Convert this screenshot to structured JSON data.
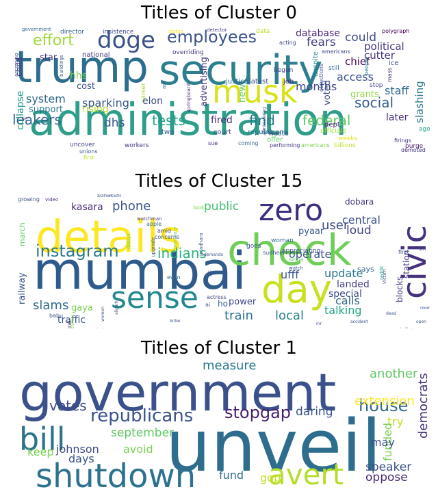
{
  "clouds": [
    {
      "title": "Titles of Cluster 0",
      "words": [
        {
          "text": "administration",
          "size": 64,
          "color": "#2e9d8a"
        },
        {
          "text": "security",
          "size": 60,
          "color": "#2c7f8e"
        },
        {
          "text": "trump",
          "size": 64,
          "color": "#2d6e8e"
        },
        {
          "text": "musk",
          "size": 46,
          "color": "#d7e219"
        },
        {
          "text": "doge",
          "size": 34,
          "color": "#3b518b"
        },
        {
          "text": "employees",
          "size": 24,
          "color": "#3a548c"
        },
        {
          "text": "effort",
          "size": 22,
          "color": "#9fd938"
        },
        {
          "text": "fears",
          "size": 17,
          "color": "#433e85"
        },
        {
          "text": "could",
          "size": 17,
          "color": "#3e4a89"
        },
        {
          "text": "political",
          "size": 15,
          "color": "#46337f"
        },
        {
          "text": "cutter",
          "size": 15,
          "color": "#46327e"
        },
        {
          "text": "database",
          "size": 14,
          "color": "#482475"
        },
        {
          "text": "chief",
          "size": 15,
          "color": "#440154"
        },
        {
          "text": "social",
          "size": 20,
          "color": "#365c8d"
        },
        {
          "text": "leakers",
          "size": 20,
          "color": "#33638d"
        },
        {
          "text": "tests",
          "size": 20,
          "color": "#1fa187"
        },
        {
          "text": "find",
          "size": 20,
          "color": "#2a788e"
        },
        {
          "text": "federal",
          "size": 20,
          "color": "#5ec962"
        },
        {
          "text": "dhs",
          "size": 17,
          "color": "#3b528b"
        },
        {
          "text": "fired",
          "size": 14,
          "color": "#482878"
        },
        {
          "text": "later",
          "size": 14,
          "color": "#472c7a"
        },
        {
          "text": "system",
          "size": 16,
          "color": "#31688e"
        },
        {
          "text": "sparking",
          "size": 16,
          "color": "#39568c"
        },
        {
          "text": "elon",
          "size": 14,
          "color": "#3e4989"
        },
        {
          "text": "rising",
          "size": 14,
          "color": "#b5de2b"
        },
        {
          "text": "support",
          "size": 13,
          "color": "#2a788e"
        },
        {
          "text": "access",
          "size": 16,
          "color": "#3b528b"
        },
        {
          "text": "months",
          "size": 16,
          "color": "#404688"
        },
        {
          "text": "staff",
          "size": 16,
          "color": "#31688e"
        },
        {
          "text": "grants",
          "size": 13,
          "color": "#8fd744"
        },
        {
          "text": "slashing",
          "size": 15,
          "color": "#2a788e"
        },
        {
          "text": "collapse",
          "size": 14,
          "color": "#1f968b"
        },
        {
          "text": "advertising",
          "size": 13,
          "color": "#453781"
        },
        {
          "text": "voted",
          "size": 13,
          "color": "#3e4989"
        },
        {
          "text": "hhs",
          "size": 14,
          "color": "#7ad151"
        },
        {
          "text": "cost",
          "size": 13,
          "color": "#3b528b"
        },
        {
          "text": "star",
          "size": 13,
          "color": "#46327e"
        },
        {
          "text": "national",
          "size": 10,
          "color": "#443a83"
        },
        {
          "text": "new",
          "size": 13,
          "color": "#5ec962"
        },
        {
          "text": "justice",
          "size": 10,
          "color": "#31688e"
        },
        {
          "text": "latest",
          "size": 10,
          "color": "#3b528b"
        },
        {
          "text": "job",
          "size": 10,
          "color": "#472d7b"
        },
        {
          "text": "begun",
          "size": 9,
          "color": "#414487"
        },
        {
          "text": "still",
          "size": 9,
          "color": "#2c728e"
        },
        {
          "text": "despite",
          "size": 10,
          "color": "#25858e"
        },
        {
          "text": "ice",
          "size": 10,
          "color": "#3b528b"
        },
        {
          "text": "mass",
          "size": 8,
          "color": "#482173"
        },
        {
          "text": "people",
          "size": 8,
          "color": "#26828e"
        },
        {
          "text": "stop",
          "size": 9,
          "color": "#404688"
        },
        {
          "text": "republicans",
          "size": 10,
          "color": "#2c728e"
        },
        {
          "text": "court",
          "size": 10,
          "color": "#414487"
        },
        {
          "text": "ousts",
          "size": 10,
          "color": "#2a788e"
        },
        {
          "text": "officials",
          "size": 10,
          "color": "#a0da39"
        },
        {
          "text": "weeks",
          "size": 9,
          "color": "#e5e419"
        },
        {
          "text": "dept",
          "size": 10,
          "color": "#481f70"
        },
        {
          "text": "two",
          "size": 10,
          "color": "#3b528b"
        },
        {
          "text": "career",
          "size": 9,
          "color": "#a0da39"
        },
        {
          "text": "waste",
          "size": 10,
          "color": "#3b528b"
        },
        {
          "text": "offer",
          "size": 10,
          "color": "#5ec962"
        },
        {
          "text": "firings",
          "size": 8,
          "color": "#46307e"
        },
        {
          "text": "ago",
          "size": 9,
          "color": "#20a486"
        },
        {
          "text": "billions",
          "size": 9,
          "color": "#bddf26"
        },
        {
          "text": "demoted",
          "size": 8,
          "color": "#443983"
        },
        {
          "text": "purge",
          "size": 9,
          "color": "#481a6c"
        },
        {
          "text": "uncover",
          "size": 9,
          "color": "#414487"
        },
        {
          "text": "unions",
          "size": 8,
          "color": "#3b528b"
        },
        {
          "text": "first",
          "size": 8,
          "color": "#bddf26"
        },
        {
          "text": "workers",
          "size": 9,
          "color": "#46337f"
        },
        {
          "text": "sue",
          "size": 8,
          "color": "#482878"
        },
        {
          "text": "coming",
          "size": 8,
          "color": "#31688e"
        },
        {
          "text": "performing",
          "size": 8,
          "color": "#46327e"
        },
        {
          "text": "americans",
          "size": 8,
          "color": "#7ad151"
        },
        {
          "text": "government",
          "size": 7,
          "color": "#31688e"
        },
        {
          "text": "director",
          "size": 9,
          "color": "#33638d"
        },
        {
          "text": "insistence",
          "size": 9,
          "color": "#3e4989"
        },
        {
          "text": "states",
          "size": 7,
          "color": "#fde725"
        },
        {
          "text": "detector",
          "size": 7,
          "color": "#443983"
        },
        {
          "text": "data",
          "size": 9,
          "color": "#bddf26"
        },
        {
          "text": "polygraph",
          "size": 8,
          "color": "#440154"
        },
        {
          "text": "acting",
          "size": 8,
          "color": "#3e4989"
        },
        {
          "text": "americans",
          "size": 8,
          "color": "#414487"
        },
        {
          "text": "overriding",
          "size": 9,
          "color": "#46327e"
        },
        {
          "text": "accessing",
          "size": 7,
          "color": "#3b528b"
        },
        {
          "text": "child",
          "size": 12,
          "color": "#46327e"
        },
        {
          "text": "buildings",
          "size": 7,
          "color": "#3b528b"
        },
        {
          "text": "ask",
          "size": 7,
          "color": "#31688e"
        },
        {
          "text": "springboard",
          "size": 7,
          "color": "#482878"
        },
        {
          "text": "objections",
          "size": 8,
          "color": "#3b528b"
        },
        {
          "text": "administering",
          "size": 6,
          "color": "#404688"
        },
        {
          "text": "lie",
          "size": 7,
          "color": "#482878"
        }
      ]
    },
    {
      "title": "Titles of Cluster 15",
      "words": [
        {
          "text": "mumbai",
          "size": 76,
          "color": "#2e5b8c"
        },
        {
          "text": "details",
          "size": 64,
          "color": "#fde725"
        },
        {
          "text": "check",
          "size": 62,
          "color": "#6ece58"
        },
        {
          "text": "day",
          "size": 56,
          "color": "#c9e020"
        },
        {
          "text": "zero",
          "size": 44,
          "color": "#3b2f80"
        },
        {
          "text": "civic",
          "size": 48,
          "color": "#46317e"
        },
        {
          "text": "sense",
          "size": 44,
          "color": "#23888e"
        },
        {
          "text": "instagram",
          "size": 24,
          "color": "#2a788e"
        },
        {
          "text": "indians",
          "size": 20,
          "color": "#2db27d"
        },
        {
          "text": "phone",
          "size": 18,
          "color": "#3b528b"
        },
        {
          "text": "public",
          "size": 17,
          "color": "#44bf70"
        },
        {
          "text": "user",
          "size": 18,
          "color": "#3e4a89"
        },
        {
          "text": "loud",
          "size": 17,
          "color": "#424186"
        },
        {
          "text": "central",
          "size": 16,
          "color": "#3b528b"
        },
        {
          "text": "kasara",
          "size": 14,
          "color": "#482878"
        },
        {
          "text": "pyaar",
          "size": 13,
          "color": "#39568c"
        },
        {
          "text": "dobara",
          "size": 12,
          "color": "#443a83"
        },
        {
          "text": "operate",
          "size": 16,
          "color": "#3b528b"
        },
        {
          "text": "update",
          "size": 16,
          "color": "#2a788e"
        },
        {
          "text": "ufff",
          "size": 16,
          "color": "#3b528b"
        },
        {
          "text": "landed",
          "size": 14,
          "color": "#433e85"
        },
        {
          "text": "special",
          "size": 14,
          "color": "#3e4989"
        },
        {
          "text": "calls",
          "size": 16,
          "color": "#31688e"
        },
        {
          "text": "talking",
          "size": 16,
          "color": "#20a486"
        },
        {
          "text": "slams",
          "size": 18,
          "color": "#2f6c8e"
        },
        {
          "text": "train",
          "size": 18,
          "color": "#2c728e"
        },
        {
          "text": "local",
          "size": 18,
          "color": "#26828e"
        },
        {
          "text": "traffic",
          "size": 14,
          "color": "#3b528b"
        },
        {
          "text": "power",
          "size": 13,
          "color": "#404688"
        },
        {
          "text": "gaya",
          "size": 13,
          "color": "#7ad151"
        },
        {
          "text": "railway",
          "size": 13,
          "color": "#3b528b"
        },
        {
          "text": "march",
          "size": 11,
          "color": "#5ec962"
        },
        {
          "text": "blocks",
          "size": 12,
          "color": "#443983"
        },
        {
          "text": "station",
          "size": 12,
          "color": "#443983"
        },
        {
          "text": "says",
          "size": 11,
          "color": "#31688e"
        },
        {
          "text": "ho",
          "size": 12,
          "color": "#31688e"
        },
        {
          "text": "growing",
          "size": 8,
          "color": "#3b528b"
        },
        {
          "text": "video",
          "size": 7,
          "color": "#482878"
        },
        {
          "text": "sonakshi",
          "size": 8,
          "color": "#3b528b"
        },
        {
          "text": "watchman",
          "size": 7,
          "color": "#443983"
        },
        {
          "text": "concerns",
          "size": 8,
          "color": "#3b528b"
        },
        {
          "text": "amid",
          "size": 8,
          "color": "#414487"
        },
        {
          "text": "apple",
          "size": 8,
          "color": "#31688e"
        },
        {
          "text": "look",
          "size": 8,
          "color": "#7ad151"
        },
        {
          "text": "woman",
          "size": 9,
          "color": "#31688e"
        },
        {
          "text": "goes",
          "size": 9,
          "color": "#3b528b"
        },
        {
          "text": "appreciating",
          "size": 9,
          "color": "#3e4989"
        },
        {
          "text": "sudheer",
          "size": 8,
          "color": "#3b528b"
        },
        {
          "text": "sinha",
          "size": 8,
          "color": "#5ec962"
        },
        {
          "text": "watch",
          "size": 7,
          "color": "#3b528b"
        },
        {
          "text": "actress",
          "size": 8,
          "color": "#414487"
        },
        {
          "text": "ai",
          "size": 8,
          "color": "#3b528b"
        },
        {
          "text": "viral",
          "size": 8,
          "color": "#481f70"
        },
        {
          "text": "babu",
          "size": 8,
          "color": "#3b528b"
        },
        {
          "text": "post",
          "size": 7,
          "color": "#3b528b"
        },
        {
          "text": "supernatural",
          "size": 6,
          "color": "#3b528b"
        },
        {
          "text": "kolkata",
          "size": 7,
          "color": "#443983"
        },
        {
          "text": "spending",
          "size": 7,
          "color": "#3b528b"
        },
        {
          "text": "first",
          "size": 8,
          "color": "#3b528b"
        },
        {
          "text": "siri",
          "size": 7,
          "color": "#3b528b"
        },
        {
          "text": "reddit",
          "size": 7,
          "color": "#20a486"
        },
        {
          "text": "victim",
          "size": 7,
          "color": "#3b528b"
        },
        {
          "text": "demands",
          "size": 6,
          "color": "#3b528b"
        },
        {
          "text": "even",
          "size": 8,
          "color": "#31688e"
        },
        {
          "text": "bribe",
          "size": 6,
          "color": "#3b528b"
        },
        {
          "text": "inr",
          "size": 6,
          "color": "#3b528b"
        },
        {
          "text": "accident",
          "size": 6,
          "color": "#3b528b"
        },
        {
          "text": "open",
          "size": 6,
          "color": "#3b528b"
        },
        {
          "text": "dead",
          "size": 6,
          "color": "#3b528b"
        },
        {
          "text": "upgrade",
          "size": 7,
          "color": "#3b528b"
        },
        {
          "text": "delays",
          "size": 7,
          "color": "#7ad151"
        },
        {
          "text": "mortuary",
          "size": 7,
          "color": "#7ad151"
        },
        {
          "text": "jatadhara",
          "size": 7,
          "color": "#3b528b"
        },
        {
          "text": "aligarh",
          "size": 6,
          "color": "#3b528b"
        },
        {
          "text": "pic",
          "size": 6,
          "color": "#3b528b"
        },
        {
          "text": "thriller",
          "size": 6,
          "color": "#7ad151"
        },
        {
          "text": "unveiled",
          "size": 6,
          "color": "#3b528b"
        },
        {
          "text": "women",
          "size": 6,
          "color": "#3b528b"
        },
        {
          "text": "room",
          "size": 6,
          "color": "#3b528b"
        }
      ]
    },
    {
      "title": "Titles of Cluster 1",
      "words": [
        {
          "text": "unveil",
          "size": 104,
          "color": "#2e6d8e"
        },
        {
          "text": "government",
          "size": 76,
          "color": "#3b518b"
        },
        {
          "text": "shutdown",
          "size": 48,
          "color": "#2c728e"
        },
        {
          "text": "bill",
          "size": 46,
          "color": "#2c728e"
        },
        {
          "text": "avert",
          "size": 42,
          "color": "#b5de2b"
        },
        {
          "text": "republicans",
          "size": 26,
          "color": "#3b528b"
        },
        {
          "text": "stopgap",
          "size": 24,
          "color": "#481f70"
        },
        {
          "text": "house",
          "size": 24,
          "color": "#306a8e"
        },
        {
          "text": "votes",
          "size": 20,
          "color": "#3e4989"
        },
        {
          "text": "measure",
          "size": 18,
          "color": "#2a788e"
        },
        {
          "text": "another",
          "size": 18,
          "color": "#5ec962"
        },
        {
          "text": "extension",
          "size": 18,
          "color": "#fde725"
        },
        {
          "text": "democrats",
          "size": 18,
          "color": "#46327e"
        },
        {
          "text": "daring",
          "size": 17,
          "color": "#3b528b"
        },
        {
          "text": "try",
          "size": 17,
          "color": "#c2df23"
        },
        {
          "text": "september",
          "size": 17,
          "color": "#5ec962"
        },
        {
          "text": "funded",
          "size": 16,
          "color": "#7ad151"
        },
        {
          "text": "johnson",
          "size": 16,
          "color": "#3e4989"
        },
        {
          "text": "may",
          "size": 16,
          "color": "#3b528b"
        },
        {
          "text": "keep",
          "size": 16,
          "color": "#7ad151"
        },
        {
          "text": "days",
          "size": 16,
          "color": "#3b528b"
        },
        {
          "text": "avoid",
          "size": 16,
          "color": "#7ad151"
        },
        {
          "text": "speaker",
          "size": 17,
          "color": "#3b528b"
        },
        {
          "text": "oppose",
          "size": 17,
          "color": "#482878"
        },
        {
          "text": "fund",
          "size": 16,
          "color": "#31688e"
        },
        {
          "text": "gop",
          "size": 16,
          "color": "#c2df23"
        }
      ]
    }
  ]
}
